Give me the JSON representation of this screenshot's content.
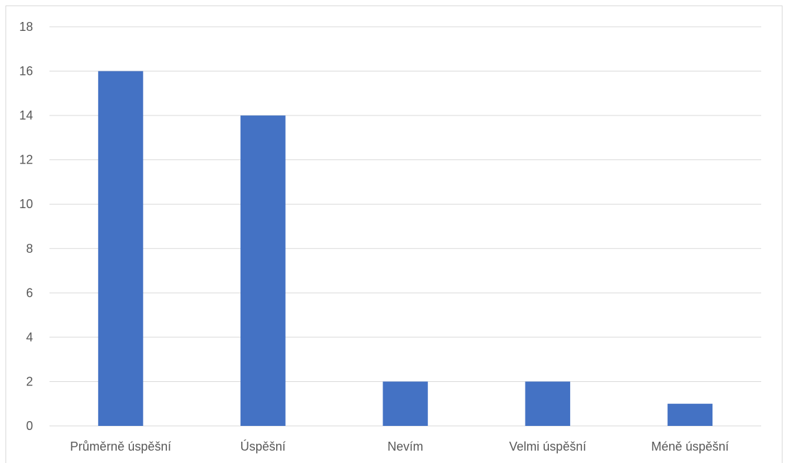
{
  "chart_data": {
    "type": "bar",
    "title": "",
    "xlabel": "",
    "ylabel": "",
    "categories": [
      "Průměrně úspěšní",
      "Úspěšní",
      "Nevím",
      "Velmi úspěšní",
      "Méně úspěšní"
    ],
    "values": [
      16,
      14,
      2,
      2,
      1
    ],
    "ylim": [
      0,
      18
    ],
    "yticks": [
      0,
      2,
      4,
      6,
      8,
      10,
      12,
      14,
      16,
      18
    ],
    "grid": true,
    "legend": "none",
    "bar_color": "#4472c4"
  }
}
